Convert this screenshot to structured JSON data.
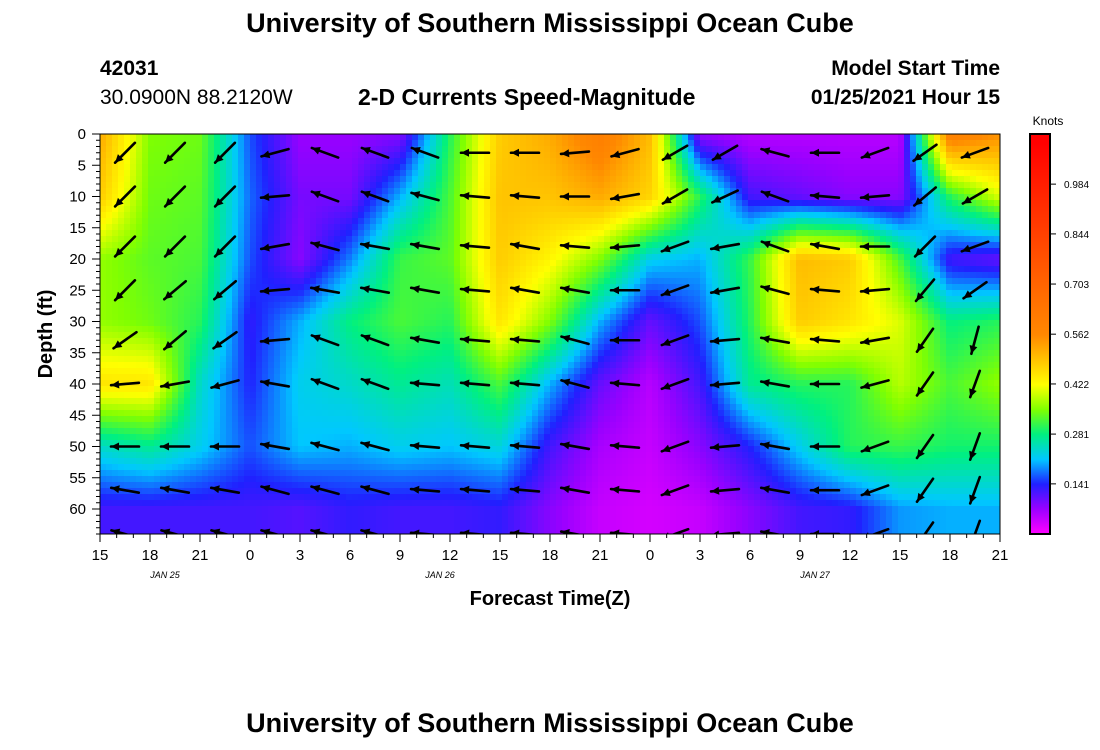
{
  "page": {
    "top_title": "University of Southern Mississippi Ocean Cube",
    "bottom_title": "University of Southern Mississippi Ocean Cube",
    "station_id": "42031",
    "location": "30.0900N 88.2120W",
    "model_start_label": "Model Start Time",
    "model_start_value": "01/25/2021 Hour 15"
  },
  "chart_data": {
    "type": "heatmap",
    "title": "2-D Currents Speed-Magnitude",
    "xlabel": "Forecast Time(Z)",
    "ylabel": "Depth (ft)",
    "x_tick_labels": [
      "15",
      "18",
      "21",
      "0",
      "3",
      "6",
      "9",
      "12",
      "15",
      "18",
      "21",
      "0",
      "3",
      "6",
      "9",
      "12",
      "15",
      "18",
      "21"
    ],
    "date_labels": [
      {
        "text": "JAN 25",
        "tick_index": 1.3
      },
      {
        "text": "JAN 26",
        "tick_index": 6.8
      },
      {
        "text": "JAN 27",
        "tick_index": 14.3
      }
    ],
    "x_hours_range": [
      0,
      54
    ],
    "y_ticks": [
      0,
      5,
      10,
      15,
      20,
      25,
      30,
      35,
      40,
      45,
      50,
      55,
      60
    ],
    "ylim": [
      0,
      64
    ],
    "y_inverted": true,
    "colorbar": {
      "unit": "Knots",
      "tick_labels": [
        "0.984",
        "0.844",
        "0.703",
        "0.562",
        "0.422",
        "0.281",
        "0.141"
      ],
      "tick_values": [
        0.984,
        0.844,
        0.703,
        0.562,
        0.422,
        0.281,
        0.141
      ],
      "range": [
        0.0,
        1.125
      ],
      "stops": [
        {
          "value": 0.0,
          "color": "#ff00ff"
        },
        {
          "value": 0.07,
          "color": "#9a00ff"
        },
        {
          "value": 0.14,
          "color": "#2020ff"
        },
        {
          "value": 0.21,
          "color": "#00c8ff"
        },
        {
          "value": 0.28,
          "color": "#00f080"
        },
        {
          "value": 0.35,
          "color": "#80ff00"
        },
        {
          "value": 0.42,
          "color": "#ffff00"
        },
        {
          "value": 0.56,
          "color": "#ff8800"
        },
        {
          "value": 1.1,
          "color": "#ff0000"
        }
      ]
    },
    "depths": [
      0,
      10,
      20,
      30,
      40,
      50,
      60
    ],
    "times": [
      0,
      3,
      6,
      9,
      12,
      15,
      18,
      21,
      24,
      27,
      30,
      33,
      36,
      39,
      42,
      45,
      48,
      51,
      54
    ],
    "speed_grid": [
      [
        0.52,
        0.35,
        0.34,
        0.16,
        0.07,
        0.07,
        0.08,
        0.3,
        0.48,
        0.52,
        0.6,
        0.5,
        0.07,
        0.05,
        0.05,
        0.05,
        0.05,
        0.6,
        0.55
      ],
      [
        0.48,
        0.34,
        0.33,
        0.17,
        0.09,
        0.09,
        0.2,
        0.32,
        0.49,
        0.49,
        0.52,
        0.47,
        0.3,
        0.12,
        0.1,
        0.08,
        0.08,
        0.3,
        0.4
      ],
      [
        0.36,
        0.33,
        0.32,
        0.16,
        0.08,
        0.18,
        0.31,
        0.33,
        0.48,
        0.43,
        0.35,
        0.22,
        0.2,
        0.31,
        0.5,
        0.48,
        0.32,
        0.12,
        0.1
      ],
      [
        0.36,
        0.34,
        0.3,
        0.13,
        0.2,
        0.28,
        0.32,
        0.3,
        0.45,
        0.35,
        0.2,
        0.1,
        0.16,
        0.3,
        0.48,
        0.45,
        0.4,
        0.28,
        0.3
      ],
      [
        0.45,
        0.45,
        0.24,
        0.14,
        0.22,
        0.24,
        0.27,
        0.25,
        0.32,
        0.2,
        0.1,
        0.05,
        0.12,
        0.27,
        0.3,
        0.3,
        0.38,
        0.32,
        0.36
      ],
      [
        0.24,
        0.27,
        0.22,
        0.16,
        0.21,
        0.2,
        0.22,
        0.21,
        0.23,
        0.12,
        0.06,
        0.04,
        0.08,
        0.14,
        0.22,
        0.3,
        0.31,
        0.29,
        0.29
      ],
      [
        0.12,
        0.12,
        0.12,
        0.12,
        0.11,
        0.13,
        0.12,
        0.12,
        0.13,
        0.08,
        0.04,
        0.03,
        0.04,
        0.08,
        0.12,
        0.13,
        0.19,
        0.2,
        0.2
      ]
    ],
    "vector_rows_depth_ft": [
      3,
      10,
      18,
      25,
      33,
      40,
      50,
      57,
      64
    ],
    "vector_cols_hours": [
      1.5,
      4.5,
      7.5,
      10.5,
      13.5,
      16.5,
      19.5,
      22.5,
      25.5,
      28.5,
      31.5,
      34.5,
      37.5,
      40.5,
      43.5,
      46.5,
      49.5,
      52.5
    ],
    "vector_directions_deg": [
      [
        135,
        135,
        135,
        165,
        200,
        200,
        200,
        180,
        180,
        175,
        165,
        150,
        150,
        195,
        180,
        160,
        145,
        160
      ],
      [
        135,
        135,
        135,
        175,
        200,
        200,
        195,
        185,
        185,
        180,
        170,
        150,
        155,
        200,
        185,
        175,
        140,
        150
      ],
      [
        135,
        135,
        135,
        170,
        195,
        190,
        190,
        185,
        190,
        185,
        175,
        160,
        170,
        200,
        190,
        180,
        135,
        160
      ],
      [
        135,
        140,
        140,
        175,
        190,
        190,
        190,
        185,
        190,
        190,
        180,
        160,
        170,
        195,
        185,
        175,
        130,
        145
      ],
      [
        145,
        140,
        145,
        175,
        200,
        200,
        190,
        185,
        185,
        195,
        180,
        160,
        175,
        190,
        185,
        170,
        125,
        105
      ],
      [
        175,
        170,
        165,
        190,
        200,
        200,
        185,
        185,
        185,
        195,
        185,
        160,
        175,
        190,
        180,
        165,
        125,
        110
      ],
      [
        180,
        180,
        180,
        190,
        195,
        195,
        185,
        185,
        185,
        190,
        185,
        160,
        175,
        190,
        180,
        160,
        125,
        110
      ],
      [
        190,
        190,
        190,
        195,
        195,
        195,
        185,
        185,
        185,
        190,
        185,
        160,
        175,
        190,
        180,
        160,
        125,
        110
      ],
      [
        195,
        195,
        195,
        195,
        195,
        195,
        185,
        185,
        185,
        190,
        185,
        160,
        175,
        190,
        180,
        160,
        125,
        110
      ]
    ]
  }
}
